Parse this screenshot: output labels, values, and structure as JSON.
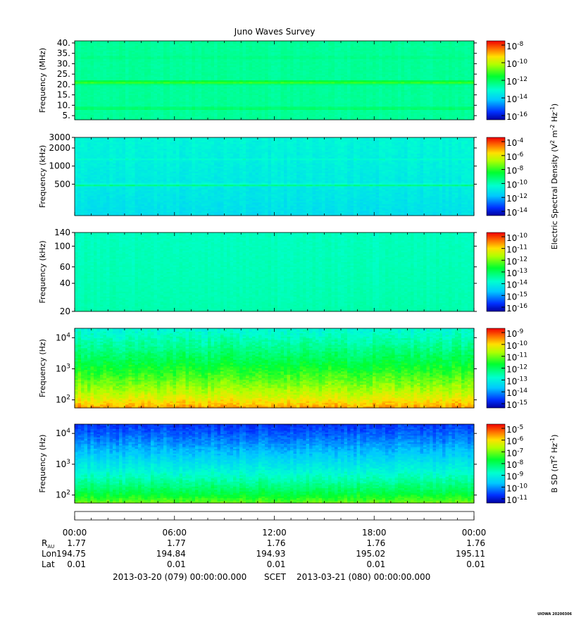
{
  "chart_data": {
    "type": "heatmap",
    "title": "Juno Waves Survey",
    "panels": [
      {
        "name": "hfwbr-high",
        "ylabel": "Frequency (MHz)",
        "scale": "linear",
        "ylim": [
          3,
          41
        ],
        "yticks": [
          {
            "value": 40,
            "label": "40."
          },
          {
            "value": 35,
            "label": "35."
          },
          {
            "value": 30,
            "label": "30."
          },
          {
            "value": 25,
            "label": "25."
          },
          {
            "value": 20,
            "label": "20."
          },
          {
            "value": 15,
            "label": "15."
          },
          {
            "value": 10,
            "label": "10."
          },
          {
            "value": 5,
            "label": "5."
          }
        ],
        "base_level": 0.44,
        "bottom_level": 0.44,
        "noise": 0.02,
        "bands": [
          {
            "at": 21,
            "width": 1.2,
            "level": 0.62
          },
          {
            "at": 8.5,
            "width": 0.9,
            "level": 0.52
          },
          {
            "at": 33,
            "width": 0.8,
            "level": 0.47
          }
        ]
      },
      {
        "name": "hfwbr-low",
        "ylabel": "Frequency (kHz)",
        "scale": "log",
        "ylim": [
          150,
          3000
        ],
        "yticks": [
          {
            "value": 3000,
            "label": "3000"
          },
          {
            "value": 2000,
            "label": "2000"
          },
          {
            "value": 1000,
            "label": "1000"
          },
          {
            "value": 500,
            "label": "500"
          }
        ],
        "base_level": 0.36,
        "bottom_level": 0.3,
        "noise": 0.03,
        "bands": [
          {
            "at": 480,
            "width": 0.03,
            "level": 0.47
          },
          {
            "at": 1600,
            "width": 0.008,
            "level": 0.45
          },
          {
            "at": 1300,
            "width": 0.01,
            "level": 0.39
          }
        ]
      },
      {
        "name": "lfr-high",
        "ylabel": "Frequency (kHz)",
        "scale": "log",
        "ylim": [
          20,
          140
        ],
        "yticks": [
          {
            "value": 140,
            "label": "140"
          },
          {
            "value": 100,
            "label": "100"
          },
          {
            "value": 60,
            "label": "60"
          },
          {
            "value": 40,
            "label": "40"
          },
          {
            "value": 20,
            "label": "20"
          }
        ],
        "base_level": 0.4,
        "bottom_level": 0.42,
        "noise": 0.02,
        "bands": []
      },
      {
        "name": "lfr-low",
        "ylabel": "Frequency (Hz)",
        "scale": "log",
        "ylim": [
          55,
          20000
        ],
        "yticks": [
          {
            "value": 10000,
            "label": "10^4"
          },
          {
            "value": 1000,
            "label": "10^3"
          },
          {
            "value": 100,
            "label": "10^2"
          }
        ],
        "base_level": 0.36,
        "bottom_level": 0.88,
        "noise": 0.06,
        "bands": []
      },
      {
        "name": "magnetic",
        "ylabel": "Frequency (Hz)",
        "scale": "log",
        "ylim": [
          55,
          20000
        ],
        "yticks": [
          {
            "value": 10000,
            "label": "10^4"
          },
          {
            "value": 1000,
            "label": "10^3"
          },
          {
            "value": 100,
            "label": "10^2"
          }
        ],
        "base_level": 0.1,
        "bottom_level": 0.66,
        "noise": 0.05,
        "bands": []
      }
    ],
    "colorbars": [
      {
        "ticks": [
          "10^-8",
          "10^-10",
          "10^-12",
          "10^-14",
          "10^-16"
        ],
        "label": ""
      },
      {
        "ticks": [
          "10^-4",
          "10^-6",
          "10^-8",
          "10^-10",
          "10^-12",
          "10^-14"
        ],
        "label": "Electric Spectral Density (V^2 m^-2 Hz^-1)"
      },
      {
        "ticks": [
          "10^-10",
          "10^-11",
          "10^-12",
          "10^-13",
          "10^-14",
          "10^-15",
          "10^-16"
        ],
        "label": ""
      },
      {
        "ticks": [
          "10^-9",
          "10^-10",
          "10^-11",
          "10^-12",
          "10^-13",
          "10^-14",
          "10^-15"
        ],
        "label": ""
      },
      {
        "ticks": [
          "10^-5",
          "10^-6",
          "10^-7",
          "10^-8",
          "10^-9",
          "10^-10",
          "10^-11"
        ],
        "label": "B SD (nT^2 Hz^-1)"
      }
    ],
    "x_axis": {
      "tick_labels": [
        "00:00",
        "06:00",
        "12:00",
        "18:00",
        "00:00"
      ],
      "ephemeris": [
        {
          "label": "R_AU",
          "values": [
            "1.77",
            "1.77",
            "1.76",
            "1.76",
            "1.76"
          ]
        },
        {
          "label": "Lon",
          "values": [
            "194.75",
            "194.84",
            "194.93",
            "195.02",
            "195.11"
          ]
        },
        {
          "label": "Lat",
          "values": [
            "0.01",
            "0.01",
            "0.01",
            "0.01",
            "0.01"
          ]
        }
      ],
      "start": "2013-03-20 (079) 00:00:00.000",
      "scet_label": "SCET",
      "end": "2013-03-21 (080) 00:00:00.000"
    },
    "footer_stamp": "UIOWA 20200306"
  }
}
